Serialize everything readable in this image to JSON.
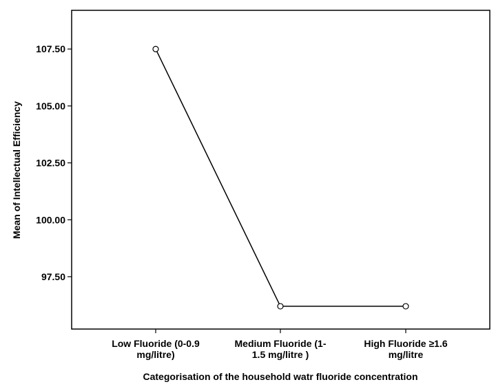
{
  "chart_data": {
    "type": "line",
    "xlabel": "Categorisation of the household watr fluoride concentration",
    "ylabel": "Mean of Intellectual Efficiency",
    "categories": [
      [
        "Low Fluoride (0-0.9",
        "mg/litre)"
      ],
      [
        "Medium Fluoride (1-",
        "1.5 mg/litre )"
      ],
      [
        "High Fluoride ≥1.6",
        "mg/litre"
      ]
    ],
    "series": [
      {
        "values": [
          107.5,
          96.2,
          96.2
        ]
      }
    ],
    "yticks": [
      97.5,
      100,
      102.5,
      105,
      107.5
    ],
    "ytick_labels": [
      "97.50",
      "100.00",
      "102.50",
      "105.00",
      "107.50"
    ],
    "ylim": [
      95.2,
      109.2
    ],
    "grid": false,
    "marker": "open-circle",
    "colors": {
      "line": "#000000",
      "marker": "#000000",
      "frame": "#000000"
    }
  }
}
